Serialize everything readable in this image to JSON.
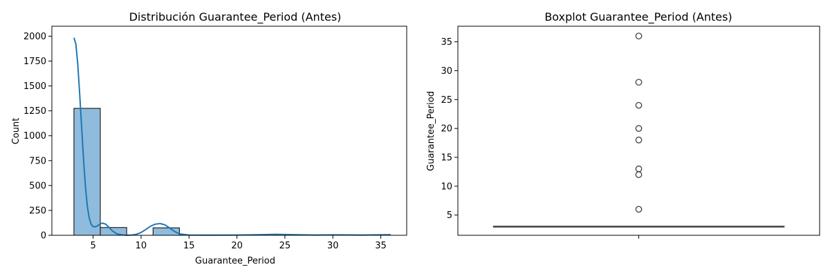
{
  "chart_data": [
    {
      "type": "histogram",
      "title": "Distribución Guarantee_Period (Antes)",
      "xlabel": "Guarantee_Period",
      "ylabel": "Count",
      "xlim": [
        0.7,
        37.7
      ],
      "ylim": [
        0,
        2100
      ],
      "xticks": [
        5,
        10,
        15,
        20,
        25,
        30,
        35
      ],
      "yticks": [
        0,
        250,
        500,
        750,
        1000,
        1250,
        1500,
        1750,
        2000
      ],
      "bar_color": "#8fbcdc",
      "kde_color": "#1f77b4",
      "bins": [
        {
          "x0": 3.0,
          "x1": 5.75,
          "count": 1275
        },
        {
          "x0": 5.75,
          "x1": 8.5,
          "count": 78
        },
        {
          "x0": 8.5,
          "x1": 11.25,
          "count": 0
        },
        {
          "x0": 11.25,
          "x1": 14.0,
          "count": 75
        },
        {
          "x0": 14.0,
          "x1": 16.75,
          "count": 2
        },
        {
          "x0": 16.75,
          "x1": 19.5,
          "count": 2
        },
        {
          "x0": 19.5,
          "x1": 22.25,
          "count": 2
        },
        {
          "x0": 22.25,
          "x1": 25.0,
          "count": 6
        },
        {
          "x0": 25.0,
          "x1": 27.75,
          "count": 2
        },
        {
          "x0": 27.75,
          "x1": 30.5,
          "count": 2
        },
        {
          "x0": 30.5,
          "x1": 33.25,
          "count": 1
        },
        {
          "x0": 33.25,
          "x1": 36.0,
          "count": 4
        }
      ],
      "kde": {
        "x": [
          3.0,
          3.2,
          3.4,
          3.6,
          3.8,
          4.0,
          4.2,
          4.4,
          4.6,
          4.8,
          5.0,
          5.2,
          5.4,
          5.6,
          5.8,
          6.0,
          6.3,
          6.6,
          7.0,
          7.5,
          8.0,
          8.5,
          9.0,
          9.5,
          10.0,
          10.5,
          11.0,
          11.5,
          12.0,
          12.5,
          13.0,
          13.5,
          14.0,
          15.0,
          17.0,
          20.0,
          22.0,
          24.0,
          26.0,
          28.0,
          30.0,
          33.0,
          36.0
        ],
        "y": [
          1985,
          1920,
          1720,
          1420,
          1090,
          760,
          490,
          290,
          170,
          110,
          88,
          85,
          92,
          105,
          118,
          122,
          112,
          85,
          45,
          14,
          4,
          1,
          3,
          10,
          28,
          58,
          92,
          112,
          118,
          105,
          72,
          38,
          14,
          3,
          2,
          3,
          5,
          10,
          6,
          3,
          4,
          3,
          6
        ]
      }
    },
    {
      "type": "boxplot",
      "title": "Boxplot Guarantee_Period (Antes)",
      "ylabel": "Guarantee_Period",
      "ylim": [
        1.5,
        37.7
      ],
      "yticks": [
        5,
        10,
        15,
        20,
        25,
        30,
        35
      ],
      "median": 3,
      "q1": 3,
      "q3": 3,
      "whisker_low": 3,
      "whisker_high": 3,
      "outliers": [
        6,
        12,
        13,
        18,
        20,
        24,
        28,
        36
      ],
      "box_color": "#4c72b0"
    }
  ]
}
